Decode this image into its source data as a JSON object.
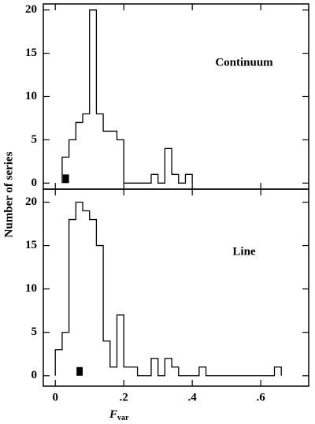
{
  "chart_data": [
    {
      "type": "histogram",
      "label": "Continuum",
      "y_label": "Number of series",
      "color": "#000000",
      "bins": [
        0.02,
        0.04,
        0.06,
        0.08,
        0.1,
        0.12,
        0.14,
        0.16,
        0.18,
        0.2,
        0.22,
        0.24,
        0.26,
        0.28,
        0.3,
        0.32,
        0.34,
        0.36,
        0.38,
        0.4
      ],
      "values": [
        3,
        5,
        7,
        8,
        20,
        8,
        6,
        6,
        5,
        0,
        0,
        0,
        0,
        1,
        0,
        4,
        1,
        0,
        1
      ],
      "highlight": {
        "bins": [
          0.022,
          0.04
        ],
        "value": 1
      },
      "xlim": [
        -0.035,
        0.74
      ],
      "xticks": [
        0,
        0.2,
        0.4,
        0.6
      ],
      "ylim": [
        -0.7,
        20.7
      ],
      "yticks": [
        0,
        5,
        10,
        15,
        20
      ]
    },
    {
      "type": "histogram",
      "label": "Line",
      "x_label": "F",
      "x_label_sub": "var",
      "color": "#000000",
      "bins": [
        0,
        0.02,
        0.04,
        0.06,
        0.08,
        0.1,
        0.12,
        0.14,
        0.16,
        0.18,
        0.2,
        0.22,
        0.24,
        0.26,
        0.28,
        0.3,
        0.32,
        0.34,
        0.36,
        0.38,
        0.4,
        0.42,
        0.44,
        0.46,
        0.48,
        0.5,
        0.52,
        0.54,
        0.56,
        0.58,
        0.6,
        0.62,
        0.64,
        0.66
      ],
      "values": [
        3,
        5,
        18,
        20,
        19,
        18,
        15,
        4,
        1,
        7,
        1,
        1,
        0,
        0,
        2,
        0,
        2,
        1,
        0,
        0,
        0,
        1,
        0,
        0,
        0,
        0,
        0,
        0,
        0,
        0,
        0,
        0,
        1
      ],
      "highlight": {
        "bins": [
          0.062,
          0.08
        ],
        "value": 1
      },
      "xlim": [
        -0.035,
        0.74
      ],
      "xticks": [
        0,
        {
          "value": 0.2,
          "label": ".2"
        },
        {
          "value": 0.4,
          "label": ".4"
        },
        {
          "value": 0.6,
          "label": ".6"
        }
      ],
      "ylim": [
        -1.2,
        21.5
      ],
      "yticks": [
        0,
        5,
        10,
        15,
        20
      ]
    }
  ]
}
